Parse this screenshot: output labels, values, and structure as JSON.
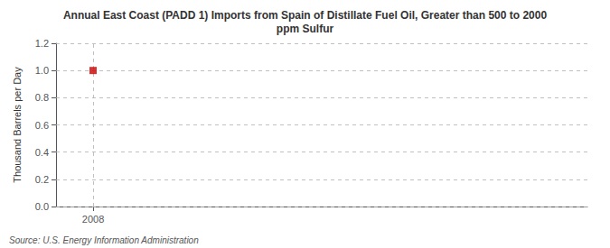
{
  "chart_data": {
    "type": "scatter",
    "title": "Annual East Coast (PADD 1) Imports from Spain of Distillate Fuel Oil, Greater than 500 to 2000\nppm Sulfur",
    "ylabel": "Thousand Barrels per Day",
    "annotations": [
      "Source: U.S. Energy Information Administration"
    ],
    "x": [
      2008
    ],
    "values": [
      1.0
    ],
    "color": "#cc0000",
    "marker": "square",
    "xlim": [
      2007.4,
      2016
    ],
    "xticks": [
      2008
    ],
    "ylim": [
      0.0,
      1.2
    ],
    "yticks": [
      {
        "value": 0.0,
        "label": "0.0"
      },
      0.2,
      0.4,
      0.6,
      0.8,
      {
        "value": 1.0,
        "label": "1.0"
      },
      1.2
    ],
    "grid": true
  }
}
